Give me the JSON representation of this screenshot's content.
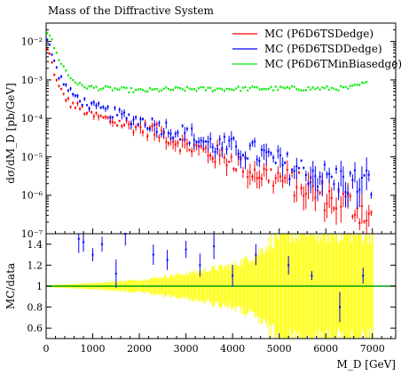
{
  "chart_data": [
    {
      "type": "scatter",
      "title": "Mass of the Diffractive System",
      "ylabel": "dσ/dM_D [pb/GeV]",
      "xlim": [
        0,
        7500
      ],
      "ylim": [
        1e-07,
        0.03
      ],
      "yscale": "log",
      "ytick_labels": [
        "10⁻⁷",
        "10⁻⁶",
        "10⁻⁵",
        "10⁻⁴",
        "10⁻³",
        "10⁻²"
      ],
      "legend_position": "top-right",
      "series": [
        {
          "name": "MC (P6D6TSDedge)",
          "color": "#ff0000",
          "x": [
            50,
            250,
            500,
            750,
            1000,
            1500,
            2000,
            2500,
            3000,
            3500,
            4000,
            4500,
            5000,
            5500,
            6000,
            6500,
            7000
          ],
          "y": [
            0.006,
            0.0007,
            0.00025,
            0.00018,
            0.00012,
            8e-05,
            6e-05,
            4e-05,
            2e-05,
            1.3e-05,
            8.5e-06,
            4e-06,
            2.8e-06,
            1.7e-06,
            9e-07,
            6e-07,
            3e-07
          ]
        },
        {
          "name": "MC (P6D6TSDDedge)",
          "color": "#0000ff",
          "x": [
            50,
            250,
            500,
            750,
            1000,
            1500,
            2000,
            2500,
            3000,
            3500,
            4000,
            4500,
            5000,
            5500,
            6000,
            6500,
            7000
          ],
          "y": [
            0.01,
            0.0015,
            0.0005,
            0.0003,
            0.0002,
            0.00013,
            9e-05,
            6e-05,
            4e-05,
            2.2e-05,
            1.7e-05,
            1.3e-05,
            7e-06,
            4.5e-06,
            3e-06,
            2.2e-06,
            2e-06
          ]
        },
        {
          "name": "MC (P6D6TMinBiasedge)",
          "color": "#00ee00",
          "x": [
            50,
            250,
            500,
            750,
            1000,
            1500,
            2000,
            2500,
            3000,
            3500,
            4000,
            4500,
            5000,
            5500,
            6000,
            6500,
            6900
          ],
          "y": [
            0.018,
            0.004,
            0.0012,
            0.0007,
            0.00063,
            0.00058,
            0.00052,
            0.00056,
            0.00058,
            0.00058,
            0.00059,
            0.0006,
            0.0006,
            0.0006,
            0.0006,
            0.00061,
            0.00085
          ]
        }
      ]
    },
    {
      "type": "scatter",
      "xlabel": "M_D [GeV]",
      "ylabel": "MC/data",
      "xlim": [
        0,
        7500
      ],
      "ylim": [
        0.5,
        1.5
      ],
      "x_ticks": [
        0,
        1000,
        2000,
        3000,
        4000,
        5000,
        6000,
        7000
      ],
      "y_ticks": [
        0.6,
        0.8,
        1,
        1.2,
        1.4
      ],
      "reference_line": 1,
      "band_color": "#ffff00",
      "band": {
        "x": [
          0,
          1000,
          2000,
          3000,
          4000,
          4500,
          5000,
          5500,
          6000,
          6500,
          7000
        ],
        "halfwidth": [
          0.01,
          0.03,
          0.06,
          0.12,
          0.2,
          0.3,
          0.5,
          0.5,
          0.5,
          0.5,
          0.5
        ]
      },
      "series": [
        {
          "color": "#0000ff",
          "x": [
            700,
            800,
            1000,
            1200,
            1500,
            1700,
            2300,
            2600,
            3000,
            3300,
            3600,
            4000,
            4500,
            5200,
            5700,
            6300,
            6800
          ],
          "y": [
            1.45,
            1.42,
            1.3,
            1.4,
            1.12,
            1.5,
            1.3,
            1.25,
            1.35,
            1.2,
            1.38,
            1.1,
            1.3,
            1.2,
            1.1,
            0.8,
            1.1
          ]
        }
      ]
    }
  ]
}
